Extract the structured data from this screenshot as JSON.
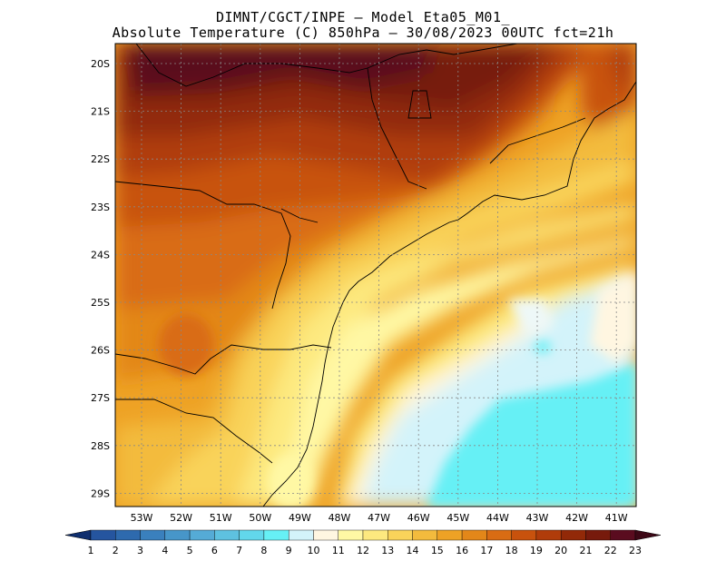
{
  "title_line1": "DIMNT/CGCT/INPE –  Model Eta05_M01_",
  "title_line2": "Absolute Temperature (C) 850hPa –  30/08/2023 00UTC fct=21h",
  "map": {
    "lat_labels": [
      "20S",
      "21S",
      "22S",
      "23S",
      "24S",
      "25S",
      "26S",
      "27S",
      "28S",
      "29S"
    ],
    "lon_labels": [
      "53W",
      "52W",
      "51W",
      "50W",
      "49W",
      "48W",
      "47W",
      "46W",
      "45W",
      "44W",
      "43W",
      "42W",
      "41W"
    ]
  },
  "colorbar": {
    "labels": [
      "1",
      "2",
      "3",
      "4",
      "5",
      "6",
      "7",
      "8",
      "9",
      "10",
      "11",
      "12",
      "13",
      "14",
      "15",
      "16",
      "17",
      "18",
      "19",
      "20",
      "21",
      "22",
      "23"
    ],
    "colors": [
      "#1b3f8f",
      "#25559f",
      "#2e6aae",
      "#3a80bd",
      "#4796c9",
      "#55abd6",
      "#5ec1e0",
      "#62d7eb",
      "#66f0f5",
      "#d3f3fa",
      "#fff6e1",
      "#fff8a4",
      "#fde97f",
      "#f9d35a",
      "#f3bb3d",
      "#eea225",
      "#e38719",
      "#d96c13",
      "#c8520d",
      "#b03c0a",
      "#922908",
      "#771a0c",
      "#5a0c1f"
    ],
    "left_cap": "#0f2e6e",
    "right_cap": "#3d0816"
  }
}
